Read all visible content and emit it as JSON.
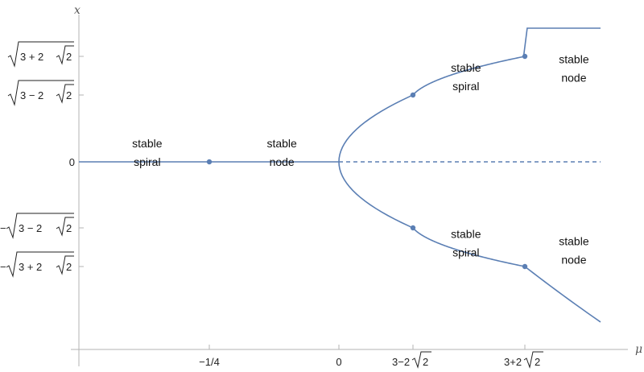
{
  "chart_data": {
    "type": "line",
    "xlabel": "μ",
    "ylabel": "x",
    "x_range": [
      -0.46,
      7.25
    ],
    "y_range": [
      -2.83,
      2.32
    ],
    "x_ticks": [
      {
        "value": -0.25,
        "prefix": "−1/4",
        "radical": ""
      },
      {
        "value": 0,
        "prefix": "0",
        "radical": ""
      },
      {
        "value": 0.1716,
        "prefix": "3−2",
        "radical": "2"
      },
      {
        "value": 5.8284,
        "prefix": "3+2",
        "radical": "2"
      }
    ],
    "y_ticks": [
      {
        "value": 2.4142,
        "sign": "",
        "inner": "3 + 2",
        "root": "2"
      },
      {
        "value": 0.4142,
        "sign": "",
        "inner": "3 − 2",
        "root": "2"
      },
      {
        "value": 0,
        "sign": "0",
        "inner": "",
        "root": ""
      },
      {
        "value": -0.4142,
        "sign": "−",
        "inner": "3 − 2",
        "root": "2"
      },
      {
        "value": -2.4142,
        "sign": "−",
        "inner": "3 + 2",
        "root": "2"
      }
    ],
    "series": [
      {
        "style": "solid",
        "x": [
          -0.46,
          0
        ],
        "y": [
          0,
          0
        ]
      },
      {
        "style": "dashed",
        "x": [
          0,
          7.25
        ],
        "y": [
          0,
          0
        ]
      },
      {
        "style": "solid",
        "x": [
          0,
          0.05,
          0.1716,
          0.5,
          1,
          2,
          3,
          4,
          5,
          5.8284,
          7.25
        ],
        "y": [
          0,
          0.2236,
          0.4142,
          0.7071,
          1,
          1.4142,
          1.7321,
          2,
          2.2361,
          2.4142,
          2.6926
        ]
      },
      {
        "style": "solid",
        "x": [
          0,
          0.05,
          0.1716,
          0.5,
          1,
          2,
          3,
          4,
          5,
          5.8284,
          7.25
        ],
        "y": [
          0,
          -0.2236,
          -0.4142,
          -0.7071,
          -1,
          -1.4142,
          -1.7321,
          -2,
          -2.2361,
          -2.4142,
          -2.6926
        ]
      }
    ],
    "points": [
      {
        "x": -0.25,
        "y": 0
      },
      {
        "x": 0.1716,
        "y": 0.4142
      },
      {
        "x": 5.8284,
        "y": 2.4142
      },
      {
        "x": 0.1716,
        "y": -0.4142
      },
      {
        "x": 5.8284,
        "y": -2.4142
      }
    ],
    "annotations": [
      {
        "line1": "stable",
        "line2": "spiral",
        "x": -0.35,
        "y": 0.05
      },
      {
        "line1": "stable",
        "line2": "node",
        "x": -0.11,
        "y": 0.05
      },
      {
        "line1": "stable",
        "line2": "spiral",
        "x": 2.85,
        "y": 1.28
      },
      {
        "line1": "stable",
        "line2": "node",
        "x": 6.75,
        "y": 1.72
      },
      {
        "line1": "stable",
        "line2": "spiral",
        "x": 2.85,
        "y": -1.27
      },
      {
        "line1": "stable",
        "line2": "node",
        "x": 6.75,
        "y": -1.64
      }
    ]
  }
}
